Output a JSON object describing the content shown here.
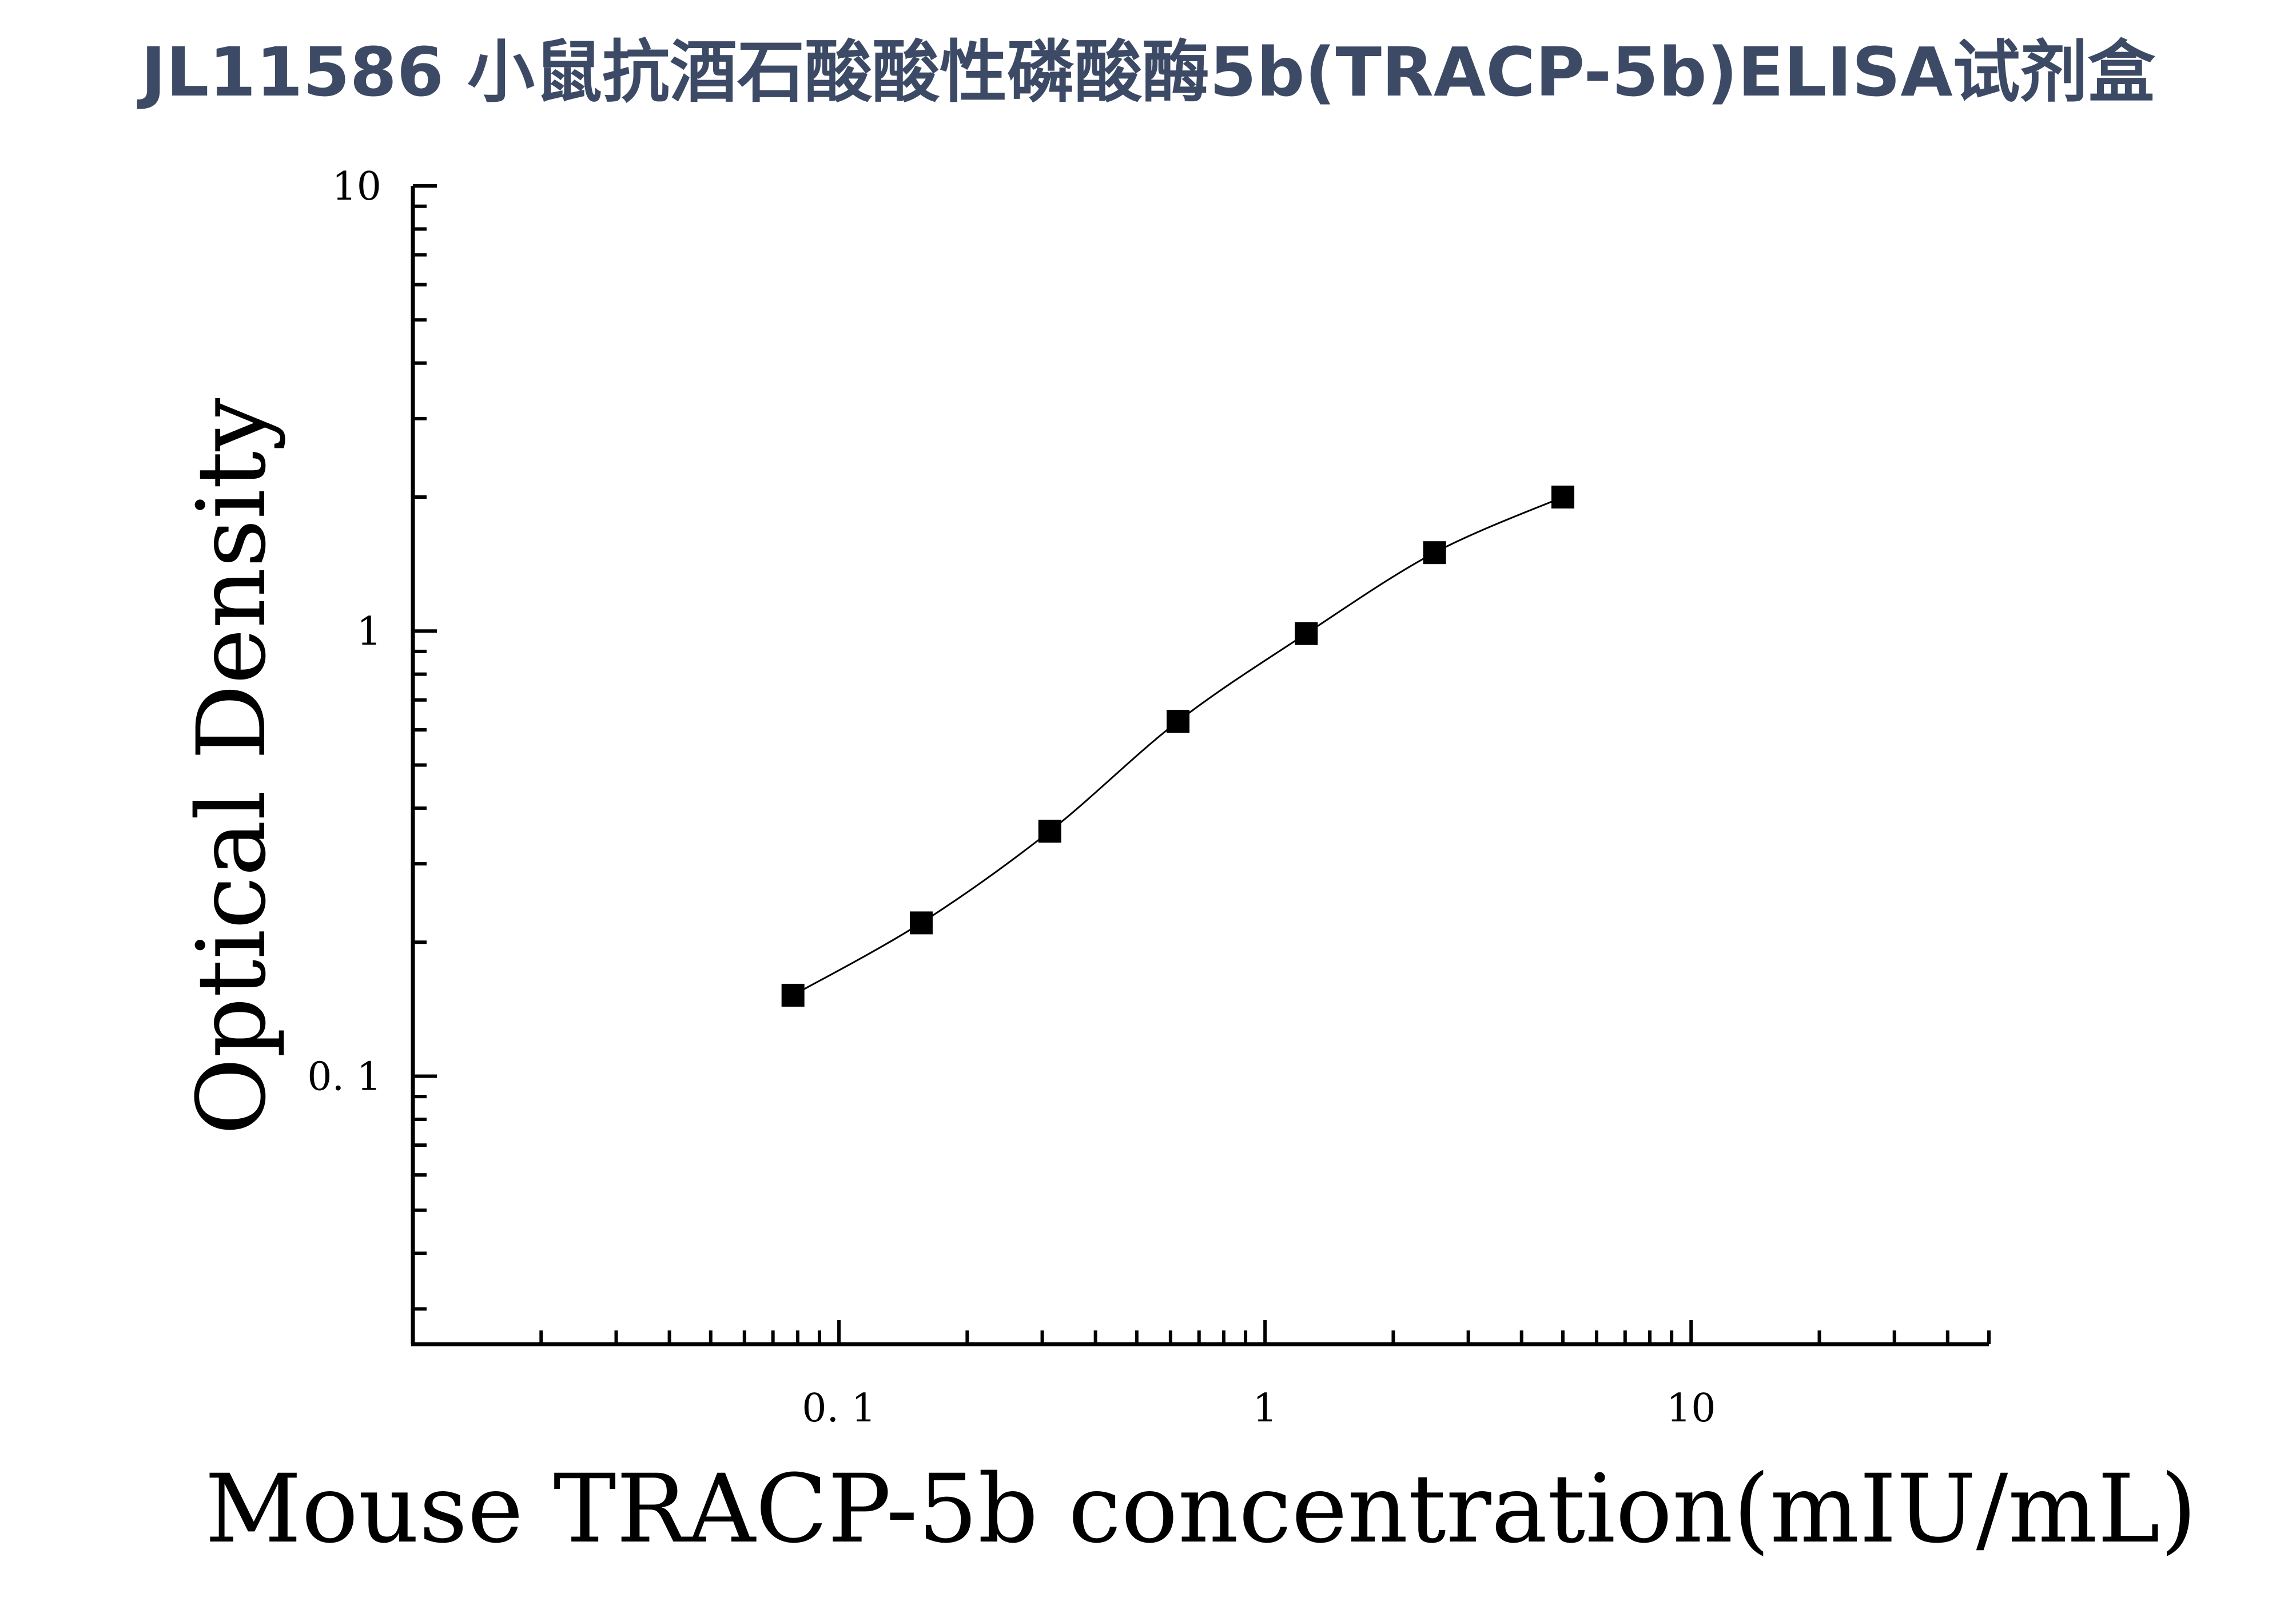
{
  "chart_data": {
    "type": "scatter",
    "title": "JL11586 小鼠抗酒石酸酸性磷酸酶5b(TRACP-5b)ELISA试剂盒",
    "xlabel": "Mouse TRACP-5b concentration(mIU/mL)",
    "ylabel": "Optical Density",
    "x_scale": "log",
    "y_scale": "log",
    "xlim": [
      0.01,
      50
    ],
    "ylim": [
      0.025,
      10
    ],
    "x_ticks": [
      {
        "value": 0.1,
        "label": "0. 1"
      },
      {
        "value": 1,
        "label": "1"
      },
      {
        "value": 10,
        "label": "10"
      }
    ],
    "y_ticks": [
      {
        "value": 0.1,
        "label": "0. 1"
      },
      {
        "value": 1,
        "label": "1"
      },
      {
        "value": 10,
        "label": "10"
      }
    ],
    "grid": false,
    "legend": "none",
    "series": [
      {
        "x": [
          0.078,
          0.156,
          0.3125,
          0.625,
          1.25,
          2.5,
          5
        ],
        "y": [
          0.152,
          0.221,
          0.355,
          0.627,
          0.987,
          1.5,
          2.0
        ],
        "marker": "square",
        "color": "#000000",
        "fit_curve": true
      }
    ]
  }
}
